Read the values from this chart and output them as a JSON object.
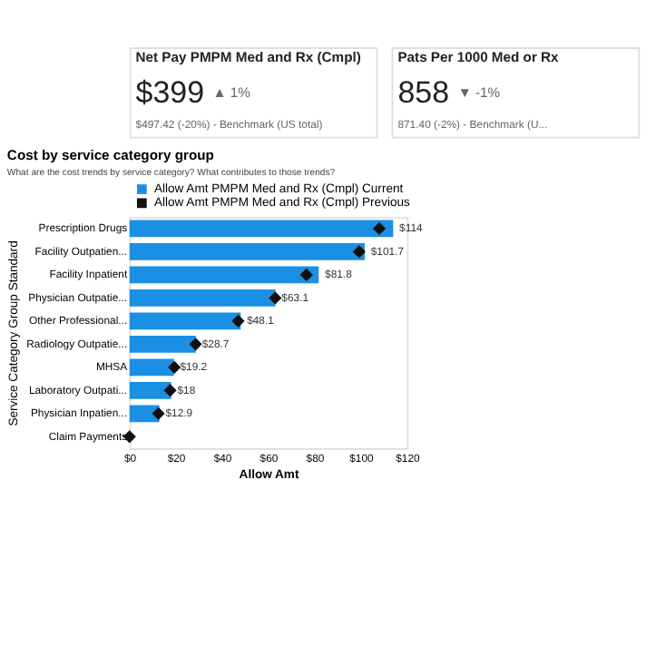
{
  "chart_data": [
    {
      "type": "other",
      "title": "Net Pay PMPM Med and Rx (Cmpl)",
      "annotations": [
        "$399",
        "▲ 1%",
        "$497.42 (-20%) - Benchmark (US total)"
      ]
    },
    {
      "type": "other",
      "title": "Pats Per 1000 Med or Rx",
      "annotations": [
        "858",
        "▼ -1%",
        "871.40 (-2%) - Benchmark (U..."
      ]
    },
    {
      "type": "bar",
      "orientation": "horizontal",
      "title": "Cost by service category group",
      "subtitle": "What are the cost trends by service category? What contributes to those trends?",
      "ylabel": "Service Category Group Standard",
      "xlabel": "Allow Amt",
      "categories": [
        "Prescription Drugs",
        "Facility Outpatien...",
        "Facility Inpatient",
        "Physician Outpatie...",
        "Other Professional...",
        "Radiology Outpatie...",
        "MHSA",
        "Laboratory Outpati...",
        "Physician Inpatien...",
        "Claim Payments"
      ],
      "xlim": [
        0,
        120
      ],
      "xticks": [
        {
          "value": 0,
          "label": "$0"
        },
        {
          "value": 20,
          "label": "$20"
        },
        {
          "value": 40,
          "label": "$40"
        },
        {
          "value": 60,
          "label": "$60"
        },
        {
          "value": 80,
          "label": "$80"
        },
        {
          "value": 100,
          "label": "$100"
        },
        {
          "value": 120,
          "label": "$120"
        }
      ],
      "legend": "top",
      "grid": false,
      "series": [
        {
          "name": "Allow Amt PMPM Med and Rx (Cmpl) Current",
          "type": "bar",
          "color": "#1a8fe3",
          "values": [
            114,
            101.7,
            81.8,
            63.1,
            48.1,
            28.7,
            19.2,
            18,
            12.9,
            0
          ],
          "value_labels": [
            "$114",
            "$101.7",
            "$81.8",
            "$63.1",
            "$48.1",
            "$28.7",
            "$19.2",
            "$18",
            "$12.9",
            null
          ]
        },
        {
          "name": "Allow Amt PMPM Med and Rx (Cmpl) Previous",
          "type": "scatter",
          "color": "#111111",
          "values": [
            108,
            99.3,
            76.5,
            63,
            47,
            28.6,
            19.4,
            17.6,
            12.5,
            0
          ]
        }
      ]
    }
  ]
}
